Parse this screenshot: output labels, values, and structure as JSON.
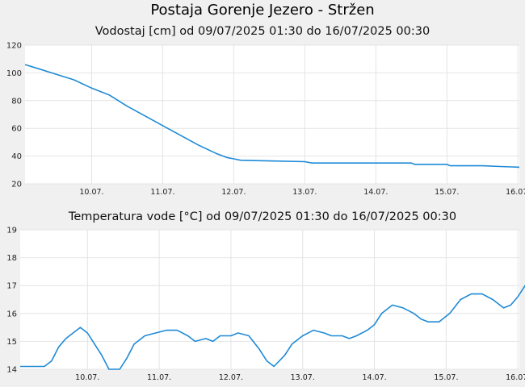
{
  "page": {
    "title": "Postaja Gorenje Jezero - Stržen"
  },
  "chart_data": [
    {
      "type": "line",
      "title": "Vodostaj [cm] od 09/07/2025 01:30 do 16/07/2025 00:30",
      "xlabel": "",
      "ylabel": "",
      "x_ticks": [
        "10.07.",
        "11.07.",
        "12.07.",
        "13.07.",
        "14.07.",
        "15.07.",
        "16.07."
      ],
      "xlim_days": [
        9.0625,
        16.02
      ],
      "ylim": [
        20,
        120
      ],
      "y_ticks": [
        20,
        40,
        60,
        80,
        100,
        120
      ],
      "grid": true,
      "line_color": "#1e8ad6",
      "series": [
        {
          "name": "",
          "points": [
            [
              9.0625,
              106
            ],
            [
              9.25,
              103
            ],
            [
              9.5,
              99
            ],
            [
              9.75,
              95
            ],
            [
              10.0,
              89
            ],
            [
              10.25,
              84
            ],
            [
              10.5,
              76
            ],
            [
              10.75,
              69
            ],
            [
              11.0,
              62
            ],
            [
              11.25,
              55
            ],
            [
              11.5,
              48
            ],
            [
              11.75,
              42
            ],
            [
              11.9,
              39
            ],
            [
              12.0,
              38
            ],
            [
              12.1,
              37
            ],
            [
              12.5,
              36.5
            ],
            [
              13.0,
              36
            ],
            [
              13.1,
              35
            ],
            [
              13.5,
              35
            ],
            [
              14.0,
              35
            ],
            [
              14.5,
              35
            ],
            [
              14.55,
              34
            ],
            [
              15.0,
              34
            ],
            [
              15.05,
              33
            ],
            [
              15.5,
              33
            ],
            [
              15.75,
              32.5
            ],
            [
              16.02,
              32
            ]
          ]
        }
      ]
    },
    {
      "type": "line",
      "title": "Temperatura vode [°C] od 09/07/2025 01:30 do 16/07/2025 00:30",
      "xlabel": "",
      "ylabel": "",
      "x_ticks": [
        "10.07.",
        "11.07.",
        "12.07.",
        "13.07.",
        "14.07.",
        "15.07.",
        "16.07."
      ],
      "xlim_days": [
        9.0625,
        16.02
      ],
      "ylim": [
        14,
        19
      ],
      "y_ticks": [
        14,
        15,
        16,
        17,
        18,
        19
      ],
      "grid": true,
      "line_color": "#1e8ad6",
      "series": [
        {
          "name": "",
          "points": [
            [
              9.0625,
              14.1
            ],
            [
              9.4,
              14.1
            ],
            [
              9.5,
              14.3
            ],
            [
              9.6,
              14.8
            ],
            [
              9.7,
              15.1
            ],
            [
              9.8,
              15.3
            ],
            [
              9.9,
              15.5
            ],
            [
              10.0,
              15.3
            ],
            [
              10.1,
              14.9
            ],
            [
              10.2,
              14.5
            ],
            [
              10.3,
              14.0
            ],
            [
              10.45,
              14.0
            ],
            [
              10.55,
              14.4
            ],
            [
              10.65,
              14.9
            ],
            [
              10.8,
              15.2
            ],
            [
              10.95,
              15.3
            ],
            [
              11.1,
              15.4
            ],
            [
              11.25,
              15.4
            ],
            [
              11.4,
              15.2
            ],
            [
              11.5,
              15.0
            ],
            [
              11.65,
              15.1
            ],
            [
              11.75,
              15.0
            ],
            [
              11.85,
              15.2
            ],
            [
              12.0,
              15.2
            ],
            [
              12.1,
              15.3
            ],
            [
              12.25,
              15.2
            ],
            [
              12.4,
              14.7
            ],
            [
              12.5,
              14.3
            ],
            [
              12.6,
              14.1
            ],
            [
              12.75,
              14.5
            ],
            [
              12.85,
              14.9
            ],
            [
              13.0,
              15.2
            ],
            [
              13.15,
              15.4
            ],
            [
              13.3,
              15.3
            ],
            [
              13.4,
              15.2
            ],
            [
              13.55,
              15.2
            ],
            [
              13.65,
              15.1
            ],
            [
              13.75,
              15.2
            ],
            [
              13.9,
              15.4
            ],
            [
              14.0,
              15.6
            ],
            [
              14.1,
              16.0
            ],
            [
              14.25,
              16.3
            ],
            [
              14.4,
              16.2
            ],
            [
              14.55,
              16.0
            ],
            [
              14.65,
              15.8
            ],
            [
              14.75,
              15.7
            ],
            [
              14.9,
              15.7
            ],
            [
              15.05,
              16.0
            ],
            [
              15.2,
              16.5
            ],
            [
              15.35,
              16.7
            ],
            [
              15.5,
              16.7
            ],
            [
              15.65,
              16.5
            ],
            [
              15.8,
              16.2
            ],
            [
              15.9,
              16.3
            ],
            [
              16.0,
              16.6
            ],
            [
              16.1,
              17.0
            ],
            [
              16.2,
              17.1
            ],
            [
              16.3,
              17.1
            ]
          ]
        }
      ]
    }
  ]
}
